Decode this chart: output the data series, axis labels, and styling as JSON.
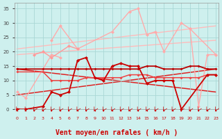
{
  "background_color": "#cef0ee",
  "grid_color": "#aad8d5",
  "xlabel": "Vent moyen/en rafales ( km/h )",
  "xlabel_color": "#cc0000",
  "xlim": [
    -0.3,
    23.3
  ],
  "ylim": [
    0,
    37
  ],
  "yticks": [
    0,
    5,
    10,
    15,
    20,
    25,
    30,
    35
  ],
  "xticks": [
    0,
    1,
    2,
    3,
    4,
    5,
    6,
    7,
    8,
    9,
    10,
    11,
    12,
    13,
    14,
    15,
    16,
    17,
    18,
    19,
    20,
    21,
    22,
    23
  ],
  "series": [
    {
      "x": [
        4,
        5,
        7,
        11,
        13,
        14,
        15,
        16,
        17,
        19,
        20,
        23
      ],
      "y": [
        24,
        29,
        21,
        27,
        34,
        35,
        26,
        27,
        20,
        30,
        28,
        19
      ],
      "color": "#ffaaaa",
      "lw": 1.0,
      "ms": 2.5,
      "marker": "D",
      "zorder": 2
    },
    {
      "x": [
        0,
        1,
        4,
        5
      ],
      "y": [
        6,
        4,
        19,
        18
      ],
      "color": "#ffaaaa",
      "lw": 1.0,
      "ms": 2.5,
      "marker": "D",
      "zorder": 2
    },
    {
      "x": [
        20,
        21,
        22,
        23
      ],
      "y": [
        28,
        1,
        19,
        19
      ],
      "color": "#ffaaaa",
      "lw": 1.0,
      "ms": 2.5,
      "marker": "D",
      "zorder": 2
    },
    {
      "x": [
        2,
        3,
        4,
        6,
        7
      ],
      "y": [
        19,
        20,
        18,
        22,
        21
      ],
      "color": "#ff9999",
      "lw": 1.0,
      "ms": 2.5,
      "marker": "D",
      "zorder": 2
    },
    {
      "x": [
        0,
        23
      ],
      "y": [
        19,
        24
      ],
      "color": "#ffbbbb",
      "lw": 1.0,
      "ms": 0,
      "marker": null,
      "zorder": 1
    },
    {
      "x": [
        0,
        23
      ],
      "y": [
        21,
        29
      ],
      "color": "#ffbbbb",
      "lw": 1.0,
      "ms": 0,
      "marker": null,
      "zorder": 1
    },
    {
      "x": [
        0,
        23
      ],
      "y": [
        5,
        14
      ],
      "color": "#dd2222",
      "lw": 1.1,
      "ms": 0,
      "marker": null,
      "zorder": 1
    },
    {
      "x": [
        0,
        23
      ],
      "y": [
        14,
        6
      ],
      "color": "#dd2222",
      "lw": 1.1,
      "ms": 0,
      "marker": null,
      "zorder": 1
    },
    {
      "x": [
        0,
        1,
        3,
        4,
        5,
        6,
        7,
        8,
        9,
        10,
        11,
        12,
        13,
        14,
        15,
        16,
        17,
        18,
        19,
        22,
        23
      ],
      "y": [
        0,
        0,
        1,
        6,
        5,
        6,
        17,
        18,
        11,
        10,
        15,
        16,
        15,
        15,
        9,
        10,
        10,
        10,
        0,
        12,
        12
      ],
      "color": "#cc0000",
      "lw": 1.3,
      "ms": 2.5,
      "marker": "D",
      "zorder": 3
    },
    {
      "x": [
        0,
        1,
        3,
        4,
        5,
        6,
        7,
        8,
        9,
        10,
        11,
        12,
        13,
        14,
        15,
        16,
        17,
        18,
        19,
        20,
        21,
        22,
        23
      ],
      "y": [
        14,
        14,
        14,
        14,
        14,
        14,
        14,
        14,
        14,
        14,
        14,
        14,
        14,
        14,
        15,
        15,
        14,
        14,
        14,
        15,
        15,
        14,
        14
      ],
      "color": "#bb0000",
      "lw": 1.3,
      "ms": 2.0,
      "marker": "D",
      "zorder": 3
    },
    {
      "x": [
        0,
        3,
        4,
        5,
        6,
        7,
        8,
        9,
        10,
        11,
        12,
        13,
        14,
        15,
        16,
        17,
        18,
        19,
        20,
        21,
        22,
        23
      ],
      "y": [
        13,
        13,
        10,
        10,
        10,
        10,
        11,
        11,
        11,
        11,
        11,
        12,
        12,
        12,
        11,
        11,
        11,
        11,
        11,
        11,
        12,
        12
      ],
      "color": "#ee4444",
      "lw": 1.1,
      "ms": 2.0,
      "marker": "D",
      "zorder": 2
    }
  ]
}
